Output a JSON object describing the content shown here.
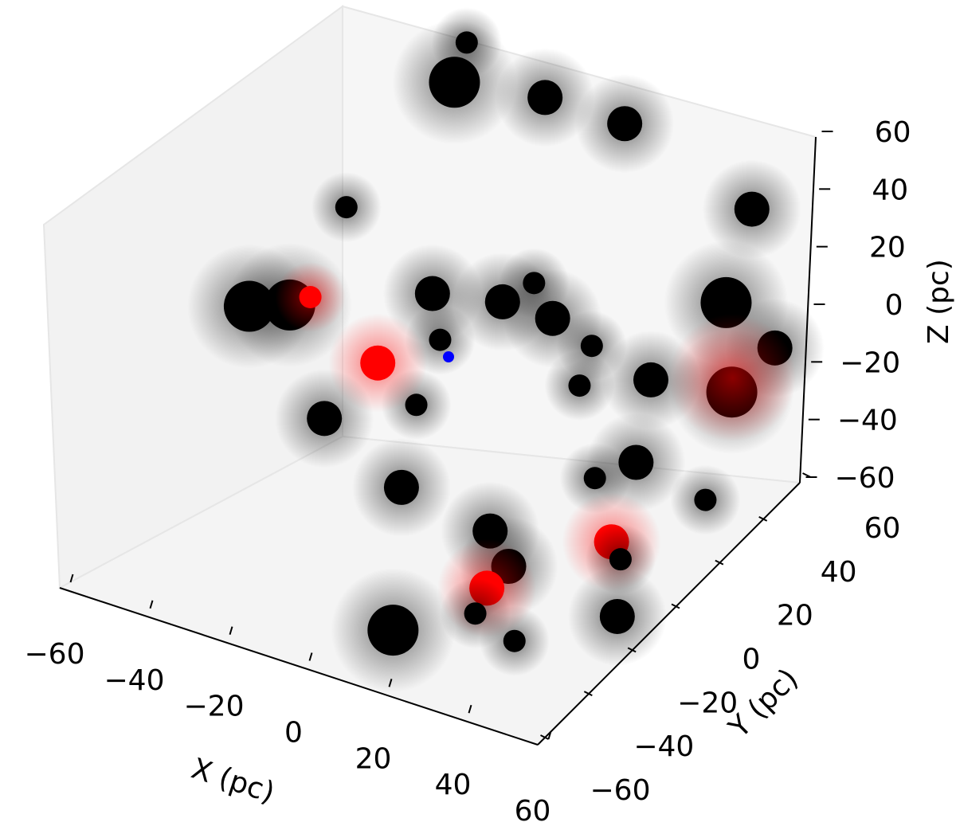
{
  "chart_data": {
    "type": "scatter",
    "projection": "3d",
    "title": "",
    "xlabel": "X (pc)",
    "ylabel": "Y (pc)",
    "zlabel": "Z (pc)",
    "xlim": [
      -60,
      60
    ],
    "ylim": [
      -60,
      60
    ],
    "zlim": [
      -60,
      60
    ],
    "x_ticks": [
      "−60",
      "−40",
      "−20",
      "0",
      "20",
      "40",
      "60"
    ],
    "y_ticks": [
      "−60",
      "−40",
      "−20",
      "0",
      "20",
      "40",
      "60"
    ],
    "z_ticks": [
      "60",
      "40",
      "20",
      "0",
      "−20",
      "−40",
      "−60"
    ],
    "grid": false,
    "colors": {
      "black_clusters": "#000000",
      "red_clusters": "#ff0000",
      "center_marker": "#0000ff",
      "pane": "#f2f2f2"
    },
    "series": [
      {
        "color": "#000000",
        "clusters": [
          {
            "x": -55,
            "y": 10,
            "z": -15,
            "size": "large"
          },
          {
            "x": -45,
            "y": 10,
            "z": -10,
            "size": "large"
          },
          {
            "x": -45,
            "y": 35,
            "z": 5,
            "size": "small"
          },
          {
            "x": -30,
            "y": 0,
            "z": -35,
            "size": "medium"
          },
          {
            "x": -15,
            "y": 20,
            "z": 0,
            "size": "medium"
          },
          {
            "x": -10,
            "y": 15,
            "z": -10,
            "size": "small"
          },
          {
            "x": -10,
            "y": 5,
            "z": -25,
            "size": "small"
          },
          {
            "x": 5,
            "y": 15,
            "z": 10,
            "size": "medium"
          },
          {
            "x": 10,
            "y": 20,
            "z": 15,
            "size": "small"
          },
          {
            "x": 15,
            "y": 20,
            "z": 5,
            "size": "medium"
          },
          {
            "x": 25,
            "y": 20,
            "z": 0,
            "size": "small"
          },
          {
            "x": 25,
            "y": 15,
            "z": -10,
            "size": "small"
          },
          {
            "x": -5,
            "y": -10,
            "z": -40,
            "size": "medium"
          },
          {
            "x": 20,
            "y": -15,
            "z": -40,
            "size": "medium"
          },
          {
            "x": 25,
            "y": -15,
            "z": -50,
            "size": "medium"
          },
          {
            "x": 25,
            "y": -30,
            "z": -55,
            "size": "small"
          },
          {
            "x": 35,
            "y": -30,
            "z": -60,
            "size": "small"
          },
          {
            "x": 10,
            "y": -40,
            "z": -60,
            "size": "large"
          },
          {
            "x": 35,
            "y": 5,
            "z": -30,
            "size": "small"
          },
          {
            "x": 45,
            "y": 5,
            "z": -20,
            "size": "medium"
          },
          {
            "x": 40,
            "y": 20,
            "z": -5,
            "size": "medium"
          },
          {
            "x": 50,
            "y": -10,
            "z": -40,
            "size": "small"
          },
          {
            "x": 55,
            "y": -20,
            "z": -50,
            "size": "medium"
          },
          {
            "x": 50,
            "y": 35,
            "z": 15,
            "size": "large"
          },
          {
            "x": 45,
            "y": 55,
            "z": 30,
            "size": "medium"
          },
          {
            "x": 55,
            "y": 30,
            "z": -10,
            "size": "large"
          },
          {
            "x": 60,
            "y": 40,
            "z": 0,
            "size": "medium"
          },
          {
            "x": 60,
            "y": 10,
            "z": -30,
            "size": "small"
          },
          {
            "x": -30,
            "y": 55,
            "z": 40,
            "size": "large"
          },
          {
            "x": -30,
            "y": 60,
            "z": 50,
            "size": "small"
          },
          {
            "x": -10,
            "y": 60,
            "z": 40,
            "size": "medium"
          },
          {
            "x": 10,
            "y": 60,
            "z": 40,
            "size": "medium"
          }
        ]
      },
      {
        "color": "#ff0000",
        "clusters": [
          {
            "x": -40,
            "y": 10,
            "z": -5,
            "size": "small"
          },
          {
            "x": -20,
            "y": 5,
            "z": -15,
            "size": "medium"
          },
          {
            "x": 25,
            "y": -25,
            "z": -50,
            "size": "medium"
          },
          {
            "x": 45,
            "y": -5,
            "z": -40,
            "size": "medium"
          },
          {
            "x": 55,
            "y": 30,
            "z": -5,
            "size": "diffuse"
          }
        ]
      },
      {
        "color": "#0000ff",
        "clusters": [
          {
            "x": 0,
            "y": 0,
            "z": 0,
            "size": "point"
          }
        ]
      }
    ]
  }
}
